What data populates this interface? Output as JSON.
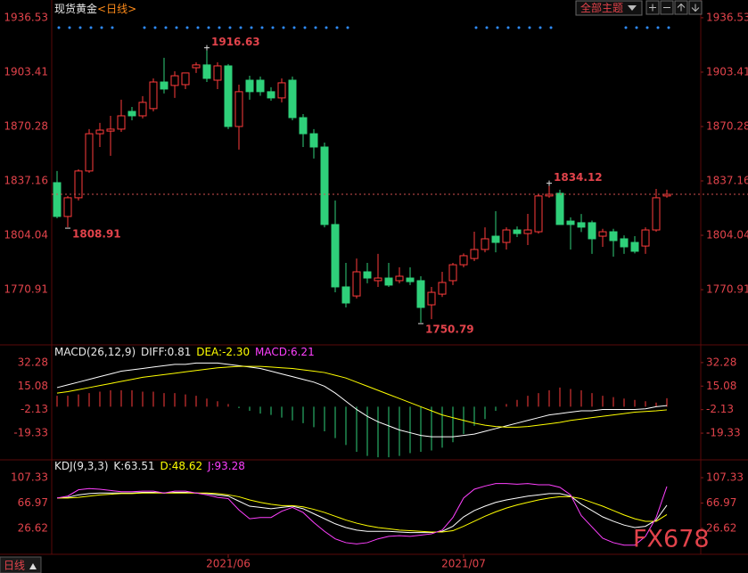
{
  "chart_data": [
    {
      "type": "candlestick",
      "title": "现货黄金",
      "subtitle": "<日线>",
      "categories": [
        null,
        null,
        null,
        null,
        null,
        null,
        null,
        null,
        null,
        null,
        null,
        null,
        null,
        null,
        null,
        null,
        "2021/06",
        null,
        null,
        null,
        null,
        null,
        null,
        null,
        null,
        null,
        null,
        null,
        null,
        null,
        null,
        null,
        null,
        null,
        null,
        null,
        null,
        null,
        "2021/07",
        null,
        null,
        null,
        null,
        null,
        null,
        null,
        null,
        null,
        null,
        null,
        null,
        null,
        null,
        null,
        null,
        null,
        null,
        null
      ],
      "open": [
        1836.1,
        1815.5,
        1826.9,
        1843.2,
        1865.9,
        1867.5,
        1868.7,
        1879.5,
        1876.8,
        1881.2,
        1897.4,
        1895.3,
        1895.8,
        1906.1,
        1907.8,
        1898.5,
        1907.2,
        1870.3,
        1898.5,
        1898.5,
        1891.5,
        1887.7,
        1898.5,
        1875.7,
        1865.9,
        1857.8,
        1810.6,
        1772.6,
        1767.1,
        1781.8,
        1776.4,
        1778.0,
        1776.4,
        1778.0,
        1776.4,
        1761.7,
        1768.2,
        1776.4,
        1786.1,
        1789.9,
        1795.4,
        1803.5,
        1799.7,
        1807.3,
        1805.1,
        1806.2,
        1828.0,
        1829.6,
        1812.7,
        1811.7,
        1811.7,
        1803.5,
        1806.2,
        1801.9,
        1799.7,
        1797.5,
        1807.3,
        1828.0
      ],
      "high": [
        1843.2,
        1828.0,
        1844.2,
        1868.7,
        1872.5,
        1876.8,
        1886.6,
        1882.2,
        1888.8,
        1899.6,
        1912.1,
        1903.9,
        1902.9,
        1909.4,
        1916.63,
        1909.4,
        1908.3,
        1895.8,
        1901.2,
        1900.7,
        1894.2,
        1899.6,
        1900.7,
        1877.9,
        1868.7,
        1860.5,
        1825.2,
        1787.2,
        1789.9,
        1787.2,
        1792.7,
        1787.2,
        1784.5,
        1784.5,
        1779.1,
        1772.6,
        1781.8,
        1787.2,
        1793.0,
        1806.2,
        1808.9,
        1818.7,
        1808.9,
        1809.4,
        1817.1,
        1829.0,
        1834.12,
        1831.8,
        1815.0,
        1817.0,
        1813.0,
        1808.0,
        1808.0,
        1804.0,
        1803.5,
        1808.9,
        1832.3,
        1831.8
      ],
      "low": [
        1814.4,
        1808.91,
        1825.2,
        1842.1,
        1857.8,
        1852.4,
        1867.0,
        1874.1,
        1875.2,
        1879.5,
        1890.4,
        1887.7,
        1893.1,
        1902.9,
        1897.4,
        1893.1,
        1868.7,
        1856.2,
        1886.6,
        1889.0,
        1886.0,
        1885.0,
        1874.1,
        1857.8,
        1850.8,
        1808.9,
        1769.3,
        1760.1,
        1765.5,
        1774.8,
        1772.6,
        1772.6,
        1774.8,
        1773.7,
        1750.79,
        1753.0,
        1766.5,
        1773.7,
        1784.5,
        1788.3,
        1793.7,
        1793.7,
        1795.4,
        1803.0,
        1798.1,
        1805.1,
        1826.9,
        1810.6,
        1795.4,
        1806.0,
        1792.7,
        1797.0,
        1791.0,
        1792.7,
        1793.0,
        1792.7,
        1806.2,
        1826.9
      ],
      "close": [
        1815.5,
        1826.9,
        1843.2,
        1865.9,
        1868.1,
        1868.7,
        1876.8,
        1876.8,
        1885.0,
        1897.4,
        1893.1,
        1901.2,
        1902.9,
        1907.8,
        1899.6,
        1907.2,
        1870.3,
        1891.5,
        1891.5,
        1891.5,
        1887.7,
        1896.9,
        1875.7,
        1865.9,
        1857.8,
        1810.6,
        1772.6,
        1762.8,
        1781.8,
        1778.0,
        1778.0,
        1773.7,
        1779.1,
        1775.8,
        1760.1,
        1769.3,
        1775.3,
        1786.1,
        1791.6,
        1795.4,
        1801.9,
        1799.7,
        1807.3,
        1805.1,
        1807.3,
        1828.0,
        1829.0,
        1810.6,
        1810.6,
        1809.0,
        1801.9,
        1806.2,
        1800.8,
        1797.0,
        1794.3,
        1807.3,
        1826.9,
        1829.0
      ],
      "up_color": "#ff3b3b",
      "down_color": "#2fd07a",
      "high_labels": [
        14,
        46
      ],
      "low_labels": [
        1,
        34
      ],
      "last_price_line": true,
      "ylim": [
        1737.3,
        1943.0
      ],
      "yticks": [
        1936.53,
        1903.41,
        1870.28,
        1837.16,
        1804.04,
        1770.91
      ]
    },
    {
      "type": "macd",
      "title": "MACD(26,12,9)",
      "series": [
        {
          "name": "DIFF:0.81",
          "color": "#ffffff",
          "values": [
            14,
            16,
            18,
            20,
            22,
            24,
            26,
            27,
            28,
            29,
            30,
            31,
            31,
            32,
            32,
            32,
            31,
            30,
            29,
            28,
            26,
            24,
            22,
            20,
            18,
            15,
            10,
            4,
            -2,
            -7,
            -11,
            -14,
            -17,
            -19,
            -21,
            -22,
            -22,
            -22,
            -21,
            -20,
            -18,
            -16,
            -14,
            -12,
            -10,
            -8,
            -6,
            -5,
            -4,
            -3,
            -3,
            -2,
            -2,
            -2,
            -2,
            -1.5,
            0,
            0.81
          ]
        },
        {
          "name": "DEA:-2.30",
          "color": "#ffff00",
          "values": [
            10,
            11,
            12.5,
            14,
            15.5,
            17,
            18.5,
            20,
            21.5,
            22.5,
            23.5,
            24.5,
            25.5,
            26.5,
            27.5,
            28.5,
            29,
            29.5,
            29.5,
            29.5,
            29,
            28.5,
            28,
            27,
            26,
            25,
            23,
            21,
            18,
            15,
            12,
            9,
            6,
            3,
            0,
            -3,
            -6,
            -8,
            -10,
            -12,
            -13.5,
            -14.5,
            -15,
            -15,
            -14.5,
            -13.5,
            -12.5,
            -11.5,
            -10,
            -9,
            -8,
            -7,
            -6,
            -5,
            -4,
            -3.5,
            -3,
            -2.3
          ]
        },
        {
          "name": "MACD:6.21",
          "color": "#ff40ff",
          "style": "histogram",
          "values": [
            8,
            8,
            9,
            10,
            11,
            12,
            12,
            12,
            11,
            11,
            10,
            10,
            9,
            8,
            6,
            4,
            2,
            -1,
            -3,
            -5,
            -6,
            -8,
            -10,
            -12,
            -15,
            -18,
            -23,
            -28,
            -33,
            -36,
            -37,
            -37,
            -36,
            -34,
            -33,
            -32,
            -30,
            -26,
            -20,
            -14,
            -9,
            -3,
            2,
            5,
            8,
            10,
            12,
            14,
            13,
            12,
            10,
            8,
            7,
            6,
            5,
            4,
            3,
            6.21
          ]
        }
      ],
      "up_color": "#ff3b3b",
      "down_color": "#2fd07a",
      "ylim": [
        -38.2,
        44.6
      ],
      "yticks": [
        32.28,
        15.08,
        -2.13,
        -19.33
      ]
    },
    {
      "type": "kdj",
      "title": "KDJ(9,3,3)",
      "series": [
        {
          "name": "K:63.51",
          "color": "#ffffff",
          "values": [
            75,
            76,
            80,
            82,
            83,
            83,
            83,
            83,
            84,
            84,
            83,
            84,
            84,
            83,
            82,
            80,
            78,
            70,
            62,
            60,
            58,
            60,
            62,
            58,
            50,
            42,
            34,
            28,
            24,
            22,
            22,
            22,
            21,
            20,
            20,
            20,
            22,
            30,
            45,
            55,
            62,
            68,
            72,
            75,
            78,
            80,
            82,
            82,
            78,
            65,
            55,
            45,
            38,
            32,
            28,
            30,
            40,
            63.51
          ]
        },
        {
          "name": "D:48.62",
          "color": "#ffff00",
          "values": [
            75,
            75,
            76,
            78,
            80,
            81,
            82,
            82,
            83,
            83,
            83,
            83,
            83,
            83,
            83,
            82,
            80,
            77,
            72,
            68,
            65,
            63,
            63,
            61,
            57,
            52,
            46,
            40,
            35,
            31,
            28,
            26,
            24,
            23,
            22,
            21,
            21,
            23,
            30,
            38,
            46,
            53,
            59,
            64,
            68,
            72,
            75,
            77,
            77,
            74,
            68,
            62,
            55,
            48,
            42,
            38,
            38,
            48.62
          ]
        },
        {
          "name": "J:93.28",
          "color": "#ff40ff",
          "values": [
            75,
            78,
            88,
            90,
            89,
            87,
            85,
            85,
            86,
            86,
            83,
            86,
            86,
            83,
            80,
            76,
            74,
            56,
            42,
            44,
            44,
            54,
            60,
            52,
            36,
            22,
            10,
            4,
            2,
            4,
            10,
            14,
            15,
            14,
            16,
            18,
            24,
            44,
            75,
            89,
            94,
            98,
            98,
            97,
            98,
            96,
            96,
            92,
            80,
            47,
            29,
            11,
            4,
            0,
            0,
            14,
            44,
            93.28
          ]
        }
      ],
      "ylim": [
        -14.5,
        134.3
      ],
      "yticks": [
        107.33,
        66.97,
        26.62
      ]
    }
  ],
  "toolbar": {
    "theme_select": "全部主题"
  },
  "footer": {
    "period": "日线"
  },
  "watermark": "FX678"
}
